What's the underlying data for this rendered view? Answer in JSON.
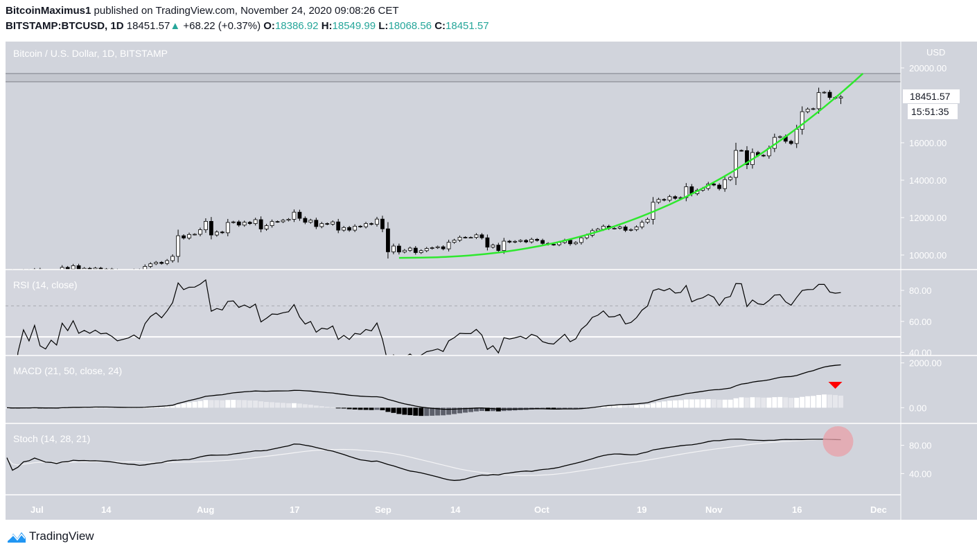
{
  "header": {
    "author": "BitcoinMaximus1",
    "published_text": "published on TradingView.com, November 24, 2020 09:08:26 CET",
    "symbol": "BITSTAMP:BTCUSD, 1D",
    "last_price": "18451.57",
    "change": "+68.22 (+0.37%)",
    "o_label": "O:",
    "o": "18386.92",
    "h_label": "H:",
    "h": "18549.99",
    "l_label": "L:",
    "l": "18068.56",
    "c_label": "C:",
    "c": "18451.57"
  },
  "pane_title": "Bitcoin / U.S. Dollar, 1D, BITSTAMP",
  "price_axis": {
    "currency": "USD",
    "last_price_label": "18451.57",
    "countdown": "15:51:35"
  },
  "indicators": {
    "rsi": "RSI (14, close)",
    "macd": "MACD (21, 50, close, 24)",
    "stoch": "Stoch (14, 28, 21)"
  },
  "time_axis": [
    "Jul",
    "14",
    "Aug",
    "17",
    "Sep",
    "14",
    "Oct",
    "19",
    "Nov",
    "16",
    "Dec"
  ],
  "watermark": "TradingView",
  "colors": {
    "background": "#d1d4dc",
    "up": "#ffffff",
    "down": "#000000",
    "support_curve": "#2ee82e",
    "signal_arrow": "#ff0000",
    "highlight_circle": "#e8a0a8",
    "positive": "#26a69a"
  },
  "chart_data": {
    "type": "candlestick",
    "title": "Bitcoin / U.S. Dollar, 1D, BITSTAMP",
    "ylabel": "USD",
    "ylim": [
      9500,
      20500
    ],
    "yticks": [
      10000,
      12000,
      14000,
      16000,
      18000,
      20000
    ],
    "ytick_labels": [
      "10000.00",
      "12000.00",
      "14000.00",
      "16000.00",
      "",
      "20000.00"
    ],
    "resistance_band": [
      19260,
      19700
    ],
    "support_curve": {
      "from": [
        "2020-09-05",
        9850
      ],
      "to": [
        "2020-11-28",
        19700
      ],
      "shape": "parabolic"
    },
    "x": [
      "2020-06-26",
      "2020-06-27",
      "2020-06-28",
      "2020-06-29",
      "2020-06-30",
      "2020-07-01",
      "2020-07-02",
      "2020-07-03",
      "2020-07-04",
      "2020-07-05",
      "2020-07-06",
      "2020-07-07",
      "2020-07-08",
      "2020-07-09",
      "2020-07-10",
      "2020-07-11",
      "2020-07-12",
      "2020-07-13",
      "2020-07-14",
      "2020-07-15",
      "2020-07-16",
      "2020-07-17",
      "2020-07-18",
      "2020-07-19",
      "2020-07-20",
      "2020-07-21",
      "2020-07-22",
      "2020-07-23",
      "2020-07-24",
      "2020-07-25",
      "2020-07-26",
      "2020-07-27",
      "2020-07-28",
      "2020-07-29",
      "2020-07-30",
      "2020-07-31",
      "2020-08-01",
      "2020-08-02",
      "2020-08-03",
      "2020-08-04",
      "2020-08-05",
      "2020-08-06",
      "2020-08-07",
      "2020-08-08",
      "2020-08-09",
      "2020-08-10",
      "2020-08-11",
      "2020-08-12",
      "2020-08-13",
      "2020-08-14",
      "2020-08-15",
      "2020-08-16",
      "2020-08-17",
      "2020-08-18",
      "2020-08-19",
      "2020-08-20",
      "2020-08-21",
      "2020-08-22",
      "2020-08-23",
      "2020-08-24",
      "2020-08-25",
      "2020-08-26",
      "2020-08-27",
      "2020-08-28",
      "2020-08-29",
      "2020-08-30",
      "2020-08-31",
      "2020-09-01",
      "2020-09-02",
      "2020-09-03",
      "2020-09-04",
      "2020-09-05",
      "2020-09-06",
      "2020-09-07",
      "2020-09-08",
      "2020-09-09",
      "2020-09-10",
      "2020-09-11",
      "2020-09-12",
      "2020-09-13",
      "2020-09-14",
      "2020-09-15",
      "2020-09-16",
      "2020-09-17",
      "2020-09-18",
      "2020-09-19",
      "2020-09-20",
      "2020-09-21",
      "2020-09-22",
      "2020-09-23",
      "2020-09-24",
      "2020-09-25",
      "2020-09-26",
      "2020-09-27",
      "2020-09-28",
      "2020-09-29",
      "2020-09-30",
      "2020-10-01",
      "2020-10-02",
      "2020-10-03",
      "2020-10-04",
      "2020-10-05",
      "2020-10-06",
      "2020-10-07",
      "2020-10-08",
      "2020-10-09",
      "2020-10-10",
      "2020-10-11",
      "2020-10-12",
      "2020-10-13",
      "2020-10-14",
      "2020-10-15",
      "2020-10-16",
      "2020-10-17",
      "2020-10-18",
      "2020-10-19",
      "2020-10-20",
      "2020-10-21",
      "2020-10-22",
      "2020-10-23",
      "2020-10-24",
      "2020-10-25",
      "2020-10-26",
      "2020-10-27",
      "2020-10-28",
      "2020-10-29",
      "2020-10-30",
      "2020-10-31",
      "2020-11-01",
      "2020-11-02",
      "2020-11-03",
      "2020-11-04",
      "2020-11-05",
      "2020-11-06",
      "2020-11-07",
      "2020-11-08",
      "2020-11-09",
      "2020-11-10",
      "2020-11-11",
      "2020-11-12",
      "2020-11-13",
      "2020-11-14",
      "2020-11-15",
      "2020-11-16",
      "2020-11-17",
      "2020-11-18",
      "2020-11-19",
      "2020-11-20",
      "2020-11-21",
      "2020-11-22",
      "2020-11-23",
      "2020-11-24"
    ],
    "close": [
      9160,
      9010,
      9110,
      9190,
      9140,
      9230,
      9090,
      9060,
      9130,
      9080,
      9340,
      9250,
      9430,
      9230,
      9290,
      9240,
      9300,
      9240,
      9250,
      9200,
      9130,
      9150,
      9170,
      9210,
      9160,
      9390,
      9530,
      9610,
      9550,
      9700,
      9930,
      11030,
      10910,
      11100,
      11110,
      11350,
      11800,
      11070,
      11230,
      11190,
      11740,
      11770,
      11600,
      11750,
      11680,
      11890,
      11390,
      11570,
      11790,
      11780,
      11860,
      11910,
      12290,
      11960,
      11750,
      11860,
      11520,
      11680,
      11650,
      11770,
      11330,
      11470,
      11330,
      11540,
      11510,
      11680,
      11640,
      11920,
      11400,
      10170,
      10480,
      10160,
      10250,
      10370,
      10130,
      10230,
      10350,
      10390,
      10440,
      10330,
      10680,
      10790,
      10950,
      10940,
      10940,
      11080,
      10920,
      10420,
      10530,
      10240,
      10740,
      10690,
      10730,
      10780,
      10700,
      10840,
      10780,
      10620,
      10570,
      10550,
      10670,
      10790,
      10600,
      10670,
      10920,
      11060,
      11300,
      11380,
      11540,
      11420,
      11430,
      11500,
      11320,
      11360,
      11500,
      11750,
      11910,
      12820,
      12970,
      12930,
      13120,
      13030,
      13070,
      13650,
      13280,
      13460,
      13560,
      13800,
      13740,
      13550,
      14030,
      14150,
      15590,
      15580,
      14830,
      15480,
      15330,
      15300,
      15700,
      16290,
      16330,
      16080,
      15960,
      16720,
      17660,
      17800,
      17820,
      18680,
      18700,
      18420,
      18380,
      18451.57
    ],
    "rsi": {
      "length": 14,
      "ylim": [
        38,
        93
      ],
      "yticks": [
        40,
        60,
        80
      ],
      "ytick_labels": [
        "40.00",
        "60.00",
        "80.00"
      ],
      "upper_band": 70,
      "mid_line": 50
    },
    "macd": {
      "fast": 21,
      "slow": 50,
      "signal": 24,
      "ylim": [
        -700,
        2300
      ],
      "yticks": [
        0,
        2000
      ],
      "ytick_labels": [
        "0.00",
        "2000.00"
      ]
    },
    "stoch": {
      "k": 14,
      "k_smooth": 28,
      "d_smooth": 21,
      "ylim": [
        10,
        110
      ],
      "yticks": [
        40,
        80
      ],
      "ytick_labels": [
        "40.00",
        "80.00"
      ]
    }
  }
}
